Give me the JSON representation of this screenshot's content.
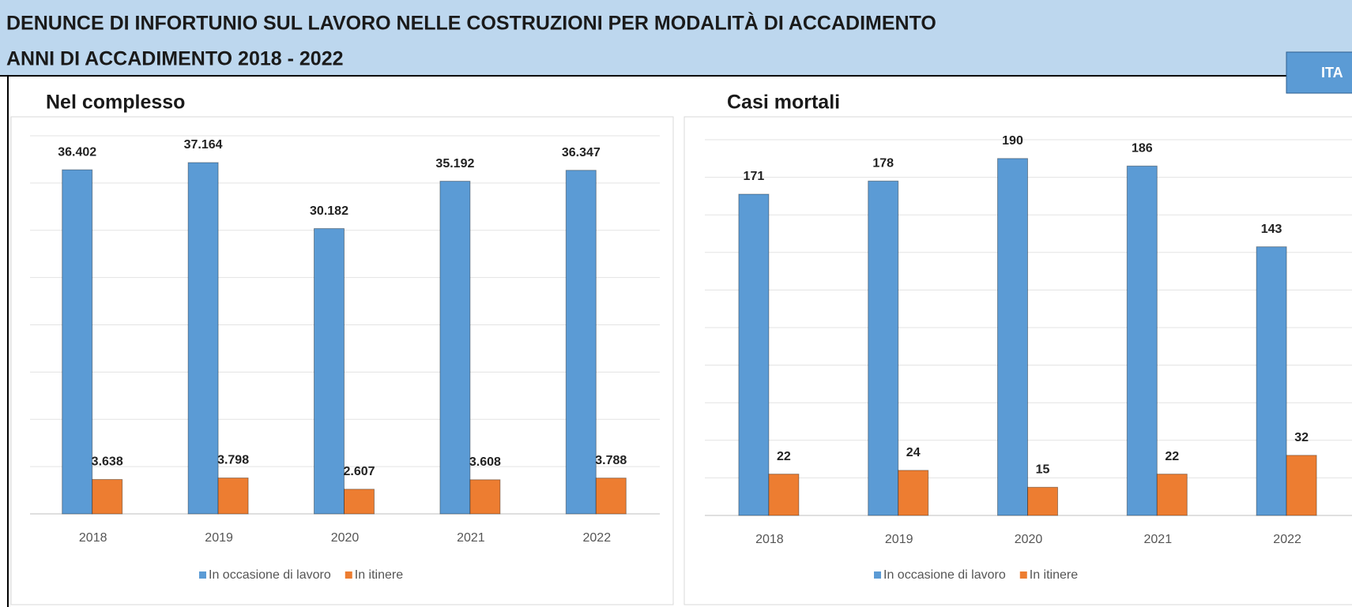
{
  "header": {
    "title": "DENUNCE DI INFORTUNIO SUL LAVORO NELLE COSTRUZIONI PER MODALITÀ DI ACCADIMENTO",
    "subtitle": "ANNI DI ACCADIMENTO 2018 - 2022",
    "button": "ITA"
  },
  "chart_data": [
    {
      "type": "bar",
      "title": "Nel complesso",
      "categories": [
        "2018",
        "2019",
        "2020",
        "2021",
        "2022"
      ],
      "series": [
        {
          "name": "In occasione di lavoro",
          "color": "#5b9bd5",
          "values": [
            36402,
            37164,
            30182,
            35192,
            36347
          ],
          "value_labels": [
            "36.402",
            "37.164",
            "30.182",
            "35.192",
            "36.347"
          ]
        },
        {
          "name": "In itinere",
          "color": "#ed7d31",
          "values": [
            3638,
            3798,
            2607,
            3608,
            3788
          ],
          "value_labels": [
            "3.638",
            "3.798",
            "2.607",
            "3.608",
            "3.788"
          ]
        }
      ],
      "ylim": [
        0,
        40000
      ],
      "yticks": [
        0,
        5000,
        10000,
        15000,
        20000,
        25000,
        30000,
        35000,
        40000
      ],
      "grid": true
    },
    {
      "type": "bar",
      "title": "Casi mortali",
      "categories": [
        "2018",
        "2019",
        "2020",
        "2021",
        "2022"
      ],
      "series": [
        {
          "name": "In occasione di lavoro",
          "color": "#5b9bd5",
          "values": [
            171,
            178,
            190,
            186,
            143
          ]
        },
        {
          "name": "In itinere",
          "color": "#ed7d31",
          "values": [
            22,
            24,
            15,
            22,
            32
          ]
        }
      ],
      "ylim": [
        0,
        200
      ],
      "yticks": [
        0,
        20,
        40,
        60,
        80,
        100,
        120,
        140,
        160,
        180,
        200
      ],
      "grid": true
    }
  ]
}
